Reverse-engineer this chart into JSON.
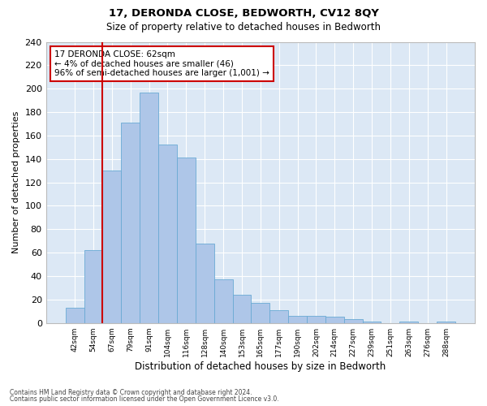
{
  "title": "17, DERONDA CLOSE, BEDWORTH, CV12 8QY",
  "subtitle": "Size of property relative to detached houses in Bedworth",
  "xlabel": "Distribution of detached houses by size in Bedworth",
  "ylabel": "Number of detached properties",
  "categories": [
    "42sqm",
    "54sqm",
    "67sqm",
    "79sqm",
    "91sqm",
    "104sqm",
    "116sqm",
    "128sqm",
    "140sqm",
    "153sqm",
    "165sqm",
    "177sqm",
    "190sqm",
    "202sqm",
    "214sqm",
    "227sqm",
    "239sqm",
    "251sqm",
    "263sqm",
    "276sqm",
    "288sqm"
  ],
  "values": [
    13,
    62,
    130,
    171,
    197,
    152,
    141,
    68,
    37,
    24,
    17,
    11,
    6,
    6,
    5,
    3,
    1,
    0,
    1,
    0,
    1
  ],
  "bar_color": "#aec6e8",
  "bar_edge_color": "#6aaad4",
  "vline_x": 1.5,
  "vline_color": "#cc0000",
  "annotation_text": "17 DERONDA CLOSE: 62sqm\n← 4% of detached houses are smaller (46)\n96% of semi-detached houses are larger (1,001) →",
  "annotation_box_color": "#ffffff",
  "annotation_box_edge_color": "#cc0000",
  "ylim": [
    0,
    240
  ],
  "yticks": [
    0,
    20,
    40,
    60,
    80,
    100,
    120,
    140,
    160,
    180,
    200,
    220,
    240
  ],
  "background_color": "#dce8f5",
  "grid_color": "#ffffff",
  "fig_facecolor": "#ffffff",
  "footer_line1": "Contains HM Land Registry data © Crown copyright and database right 2024.",
  "footer_line2": "Contains public sector information licensed under the Open Government Licence v3.0."
}
